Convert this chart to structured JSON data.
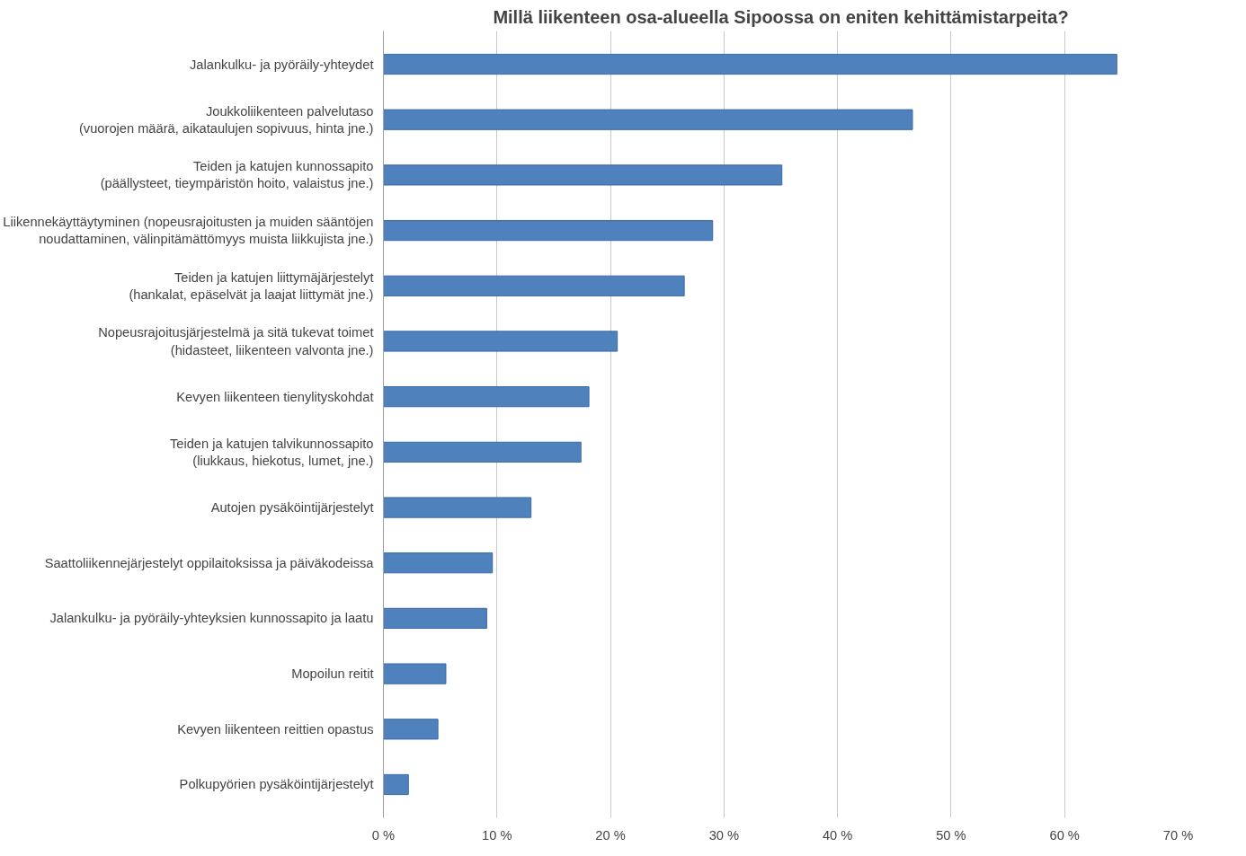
{
  "chart_data": {
    "type": "bar",
    "orientation": "horizontal",
    "title": "Millä liikenteen osa-alueella Sipoossa on eniten kehittämistarpeita?",
    "categories": [
      "Jalankulku- ja pyöräily-yhteydet",
      "Joukkoliikenteen palvelutaso\n(vuorojen määrä, aikataulujen sopivuus, hinta jne.)",
      "Teiden ja katujen kunnossapito\n(päällysteet, tieympäristön hoito, valaistus jne.)",
      "Liikennekäyttäytyminen (nopeusrajoitusten ja muiden sääntöjen\nnoudattaminen, välinpitämättömyys muista liikkujista jne.)",
      "Teiden ja katujen liittymäjärjestelyt\n(hankalat, epäselvät ja laajat liittymät jne.)",
      "Nopeusrajoitusjärjestelmä ja sitä tukevat toimet\n(hidasteet, liikenteen valvonta jne.)",
      "Kevyen liikenteen tienylityskohdat",
      "Teiden ja katujen talvikunnossapito\n(liukkaus, hiekotus, lumet, jne.)",
      "Autojen pysäköintijärjestelyt",
      "Saattoliikennejärjestelyt oppilaitoksissa ja päiväkodeissa",
      "Jalankulku- ja pyöräily-yhteyksien kunnossapito ja laatu",
      "Mopoilun reitit",
      "Kevyen liikenteen reittien opastus",
      "Polkupyörien pysäköintijärjestelyt"
    ],
    "values": [
      64.6,
      46.6,
      35.1,
      29.0,
      26.5,
      20.6,
      18.1,
      17.4,
      13.0,
      9.6,
      9.1,
      5.5,
      4.8,
      2.2
    ],
    "color": "#4f81bd",
    "xlim": [
      0,
      70
    ],
    "xticks": [
      {
        "value": 0,
        "label": "0 %"
      },
      {
        "value": 10,
        "label": "10 %"
      },
      {
        "value": 20,
        "label": "20 %"
      },
      {
        "value": 30,
        "label": "30 %"
      },
      {
        "value": 40,
        "label": "40 %"
      },
      {
        "value": 50,
        "label": "50 %"
      },
      {
        "value": 60,
        "label": "60 %"
      },
      {
        "value": 70,
        "label": "70 %"
      }
    ],
    "grid": "x"
  }
}
